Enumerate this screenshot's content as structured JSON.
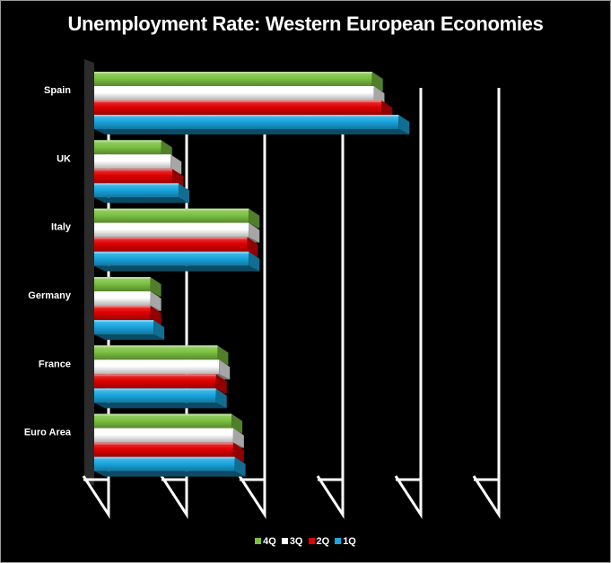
{
  "chart_data": {
    "type": "bar",
    "orientation": "horizontal",
    "title": "Unemployment Rate: Western European Economies",
    "categories": [
      "Spain",
      "UK",
      "Italy",
      "Germany",
      "France",
      "Euro Area"
    ],
    "series": [
      {
        "name": "4Q",
        "color": "#7cc242",
        "values": [
          17.8,
          4.3,
          9.9,
          3.6,
          7.9,
          8.8
        ]
      },
      {
        "name": "3Q",
        "color": "#ffffff",
        "values": [
          17.9,
          4.9,
          9.9,
          3.6,
          8.0,
          8.9
        ]
      },
      {
        "name": "2Q",
        "color": "#e00000",
        "values": [
          18.4,
          5.0,
          9.8,
          3.6,
          7.8,
          8.9
        ]
      },
      {
        "name": "1Q",
        "color": "#1aa7e0",
        "values": [
          19.5,
          5.4,
          9.9,
          3.8,
          7.8,
          9.0
        ]
      }
    ],
    "xlim": [
      0,
      25
    ],
    "grid": true,
    "legend": "bottom"
  }
}
